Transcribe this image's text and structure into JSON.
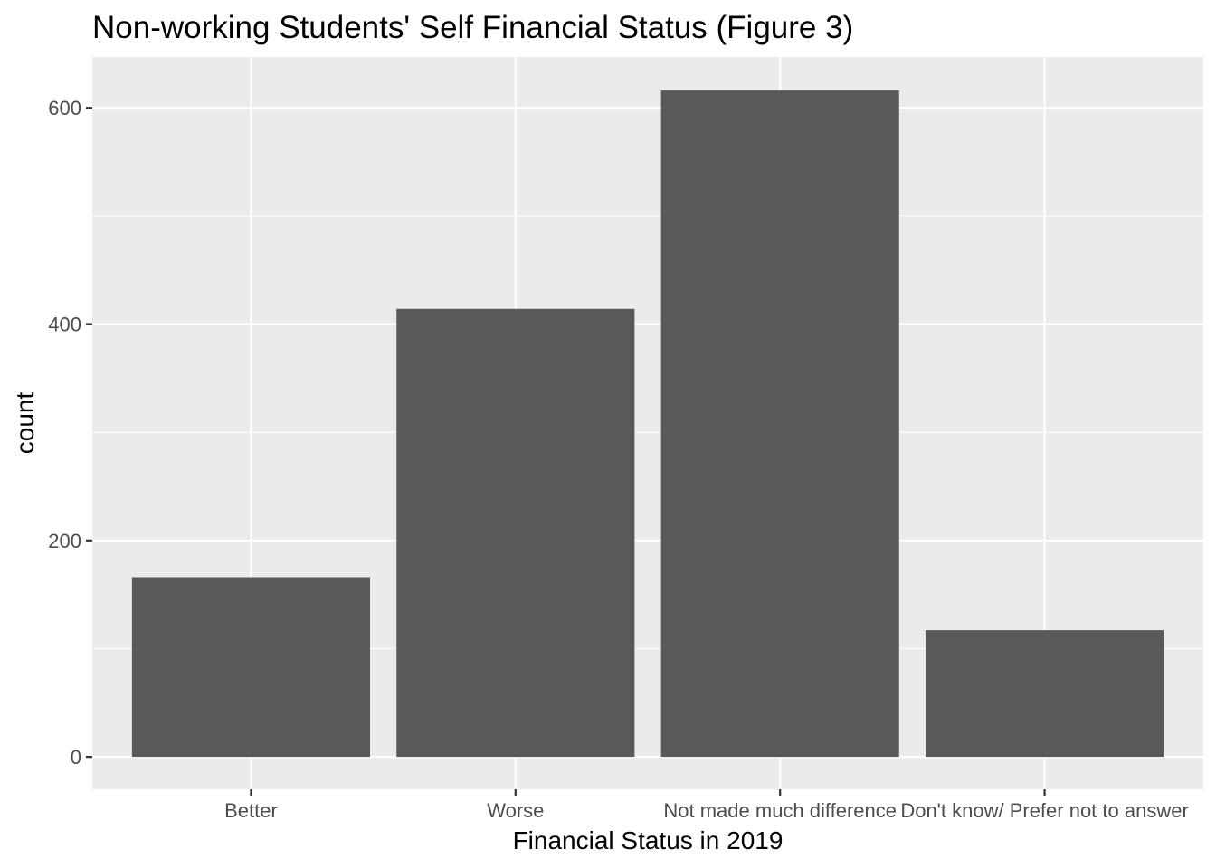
{
  "chart_data": {
    "type": "bar",
    "title": "Non-working Students' Self Financial Status (Figure 3)",
    "xlabel": "Financial Status in 2019",
    "ylabel": "count",
    "categories": [
      "Better",
      "Worse",
      "Not made much difference",
      "Don't know/ Prefer not to answer"
    ],
    "values": [
      166,
      414,
      616,
      117
    ],
    "ylim": [
      -30,
      647
    ],
    "yticks": [
      0,
      200,
      400,
      600
    ],
    "ytick_labels": [
      "0",
      "200",
      "400",
      "600"
    ],
    "grid": true,
    "colors": {
      "panel": "#ebebeb",
      "grid": "#ffffff",
      "bar": "#595959",
      "tick": "#333333",
      "tick_label": "#4d4d4d"
    }
  }
}
